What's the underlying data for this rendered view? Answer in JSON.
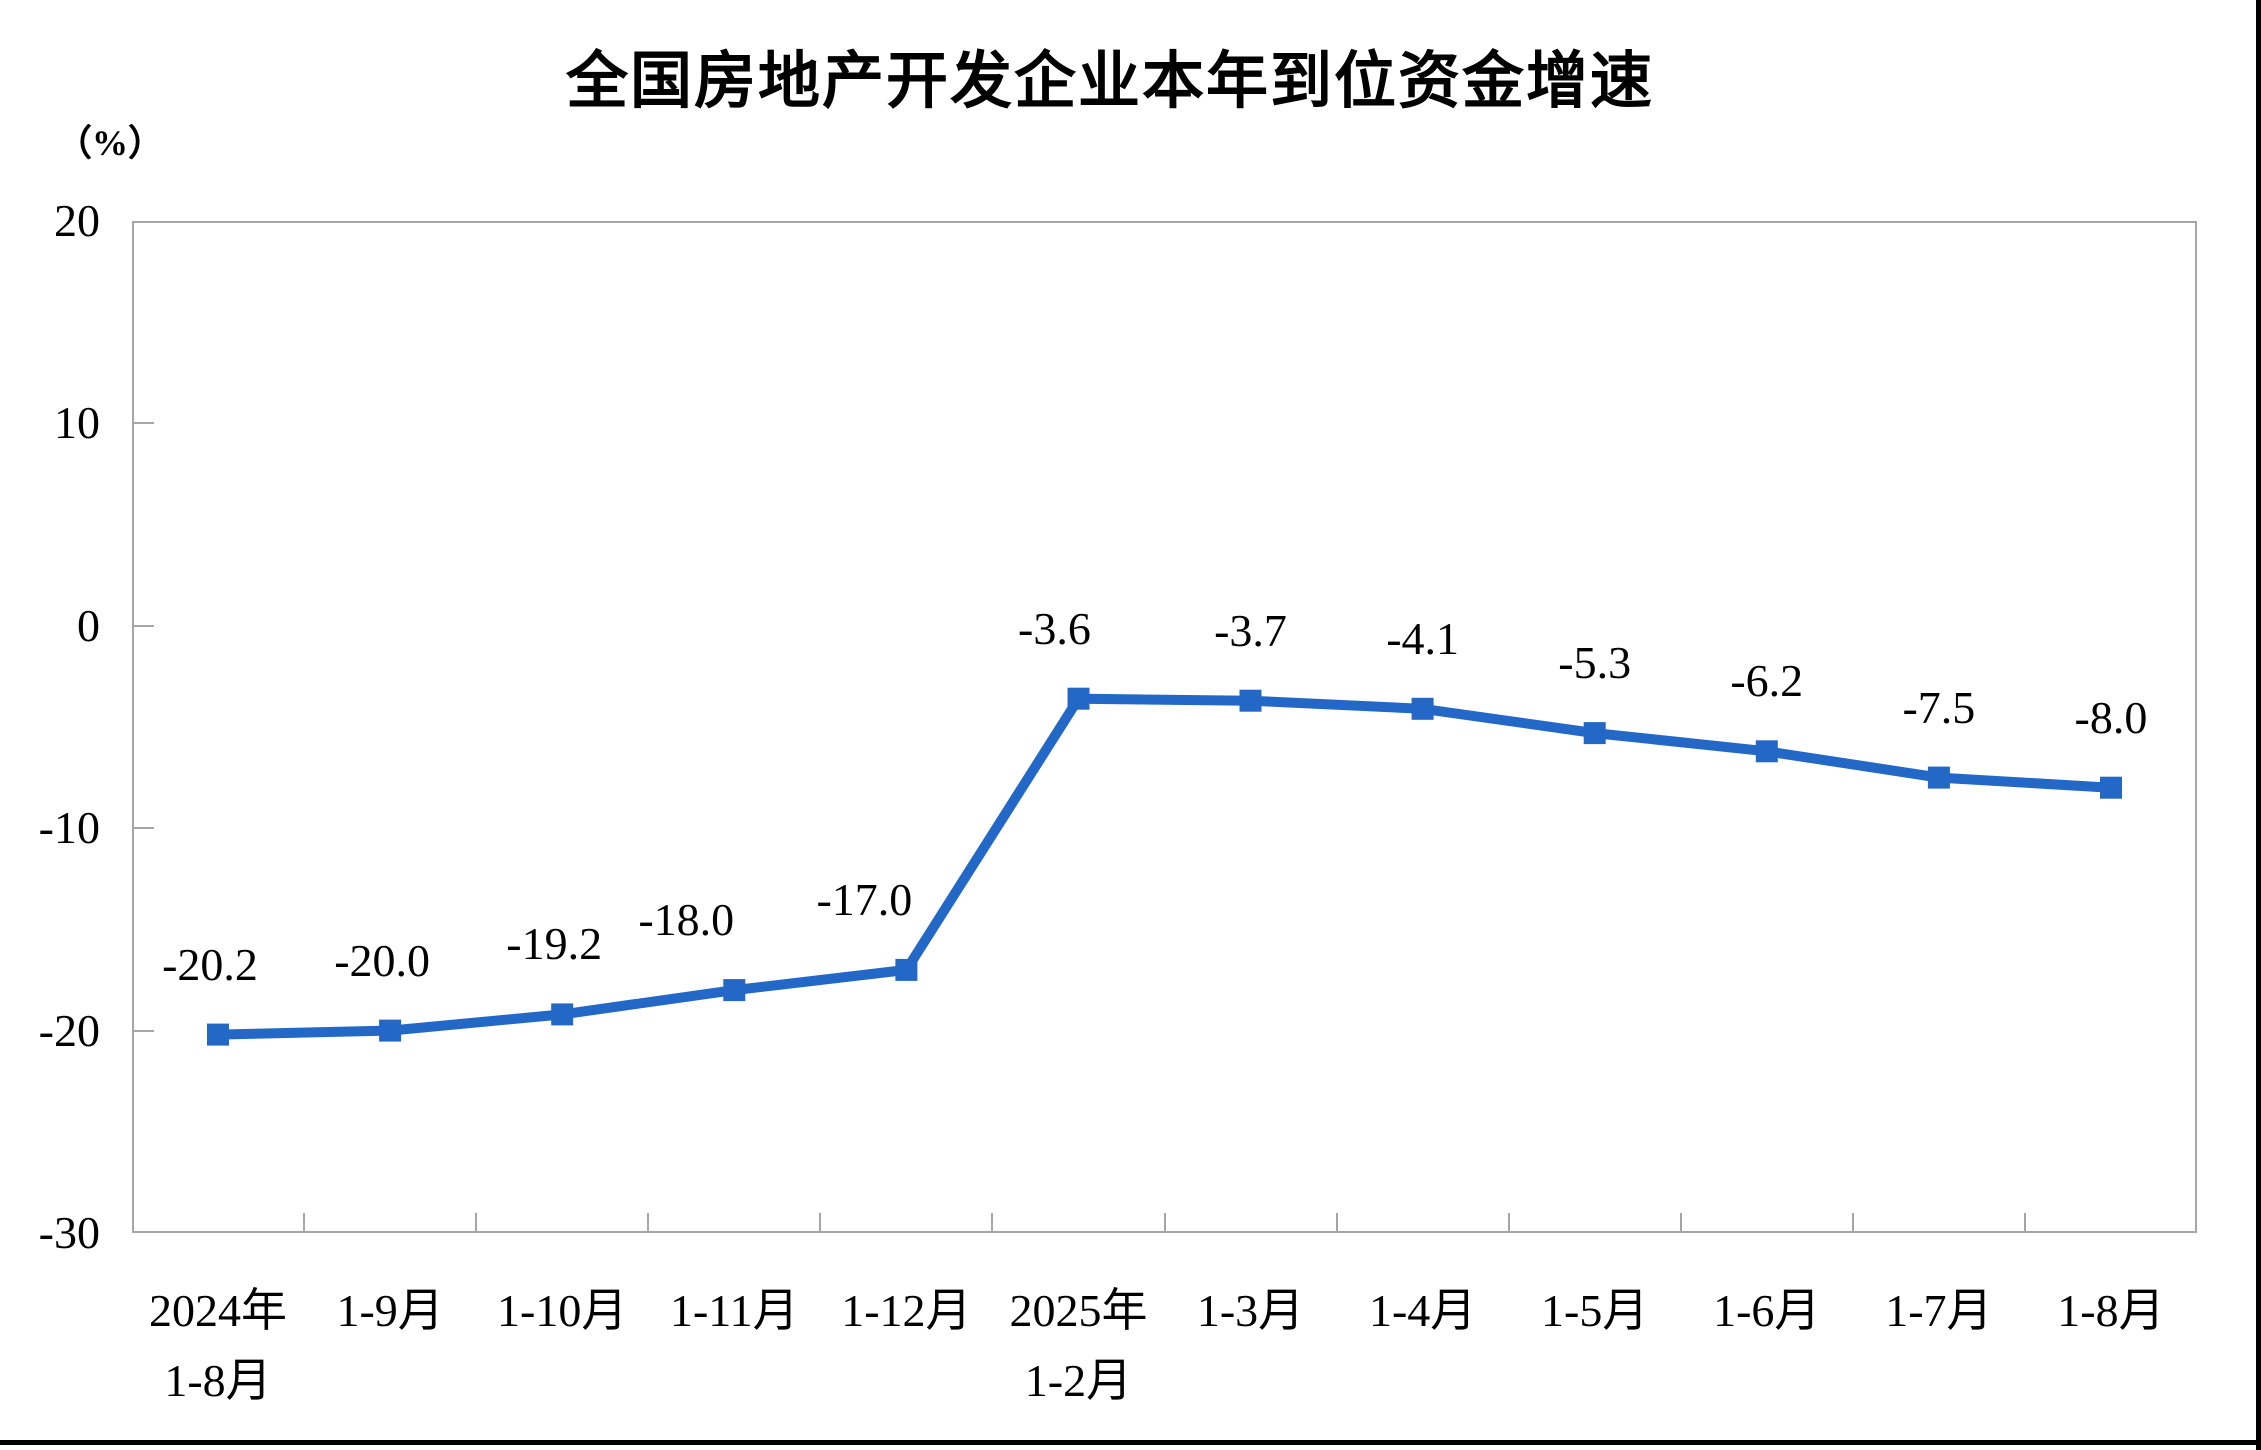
{
  "chart_data": {
    "type": "line",
    "title": "全国房地产开发企业本年到位资金增速",
    "unit_label": "（%）",
    "categories": [
      "2024年\n1-8月",
      "1-9月",
      "1-10月",
      "1-11月",
      "1-12月",
      "2025年\n1-2月",
      "1-3月",
      "1-4月",
      "1-5月",
      "1-6月",
      "1-7月",
      "1-8月"
    ],
    "values": [
      -20.2,
      -20.0,
      -19.2,
      -18.0,
      -17.0,
      -3.6,
      -3.7,
      -4.1,
      -5.3,
      -6.2,
      -7.5,
      -8.0
    ],
    "data_labels": [
      "-20.2",
      "-20.0",
      "-19.2",
      "-18.0",
      "-17.0",
      "-3.6",
      "-3.7",
      "-4.1",
      "-5.3",
      "-6.2",
      "-7.5",
      "-8.0"
    ],
    "y_ticks": [
      "20",
      "10",
      "0",
      "-10",
      "-20",
      "-30"
    ],
    "ylim": [
      -30,
      20
    ],
    "xlabel": "",
    "ylabel": "（%）",
    "grid": false,
    "legend": "none",
    "marker": "square",
    "line_color": "#2368c6",
    "axis_color": "#a6a6a6",
    "text_color": "#000000"
  }
}
